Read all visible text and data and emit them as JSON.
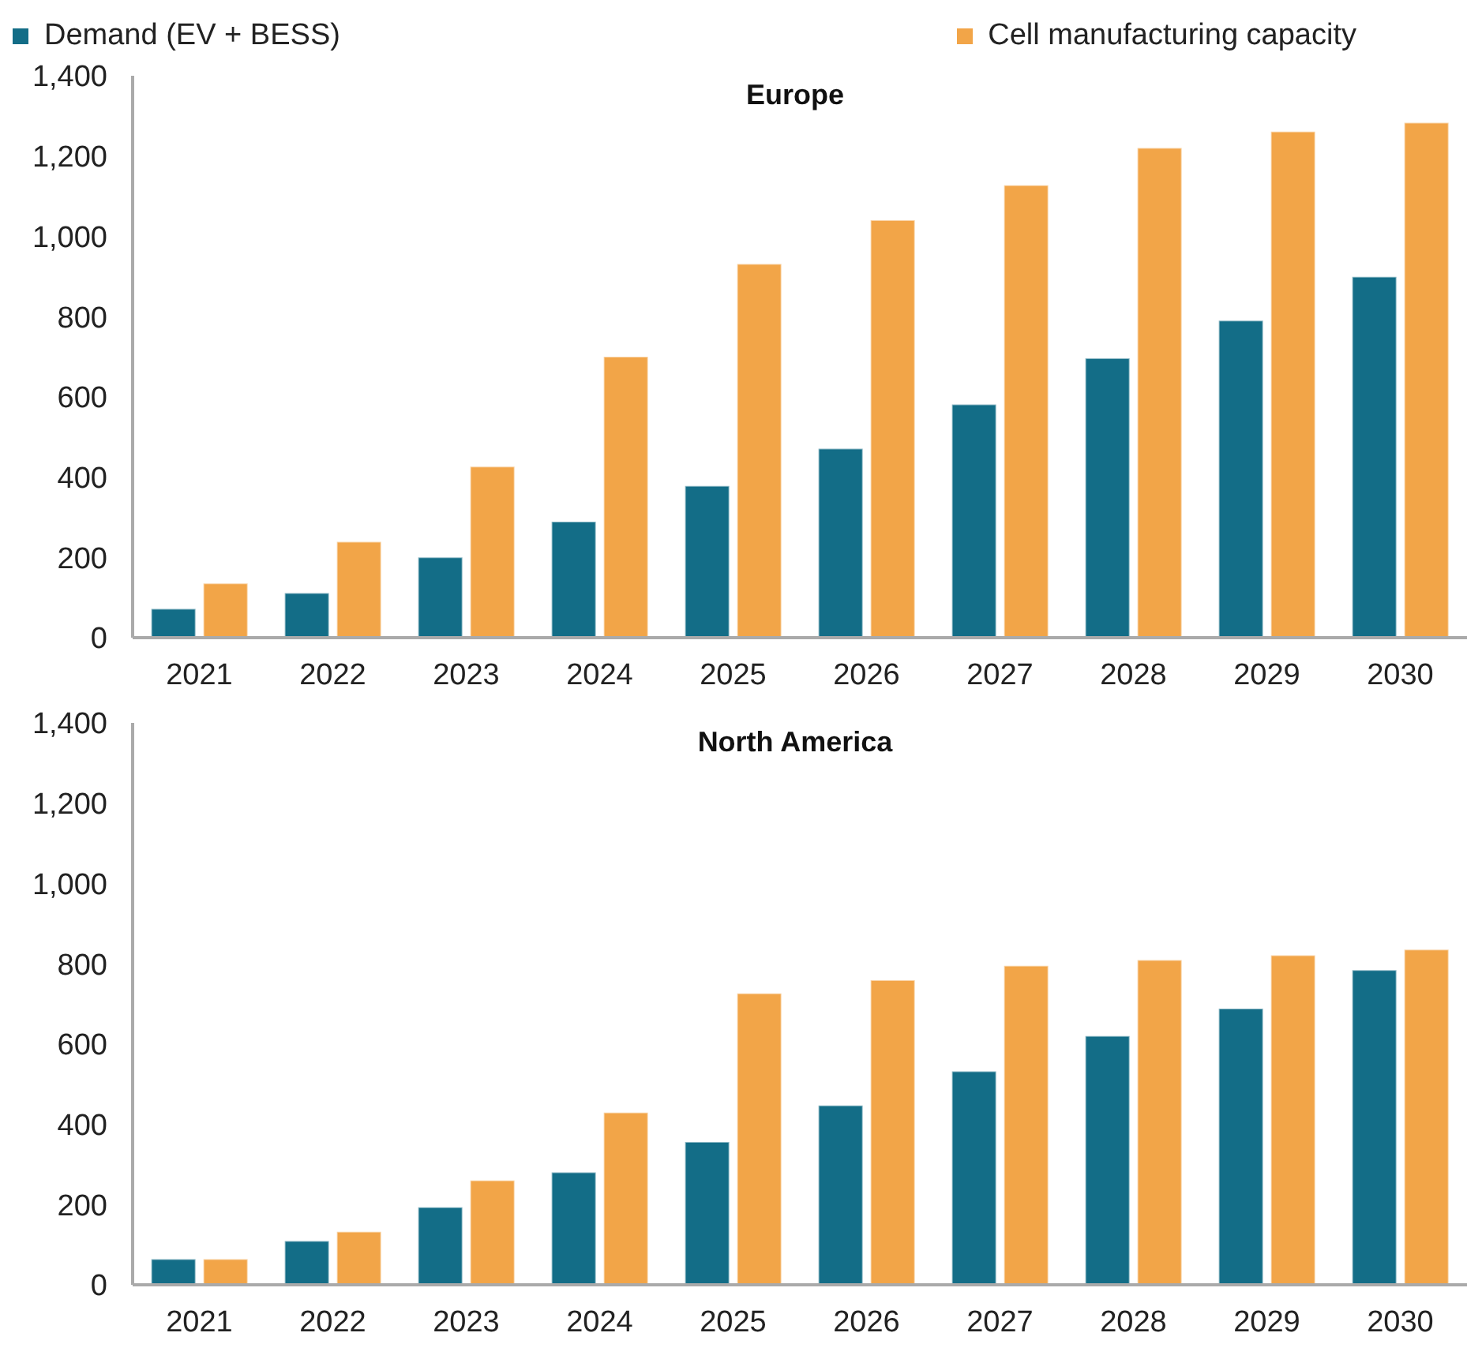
{
  "chart_data": [
    {
      "type": "bar",
      "title": "Europe",
      "categories": [
        "2021",
        "2022",
        "2023",
        "2024",
        "2025",
        "2026",
        "2027",
        "2028",
        "2029",
        "2030"
      ],
      "series": [
        {
          "name": "Demand (EV + BESS)",
          "color": "#136d87",
          "values": [
            72,
            111,
            200,
            289,
            378,
            471,
            581,
            696,
            790,
            899
          ]
        },
        {
          "name": "Cell manufacturing capacity",
          "color": "#f2a548",
          "values": [
            135,
            239,
            426,
            700,
            931,
            1040,
            1127,
            1220,
            1261,
            1283
          ]
        }
      ],
      "ylim": [
        0,
        1400
      ],
      "yticks": [
        0,
        200,
        400,
        600,
        800,
        {
          "value": 1000,
          "label": "1,000"
        },
        {
          "value": 1200,
          "label": "1,200"
        },
        {
          "value": 1400,
          "label": "1,400"
        }
      ],
      "grid": false,
      "legend": "top"
    },
    {
      "type": "bar",
      "title": "North America",
      "categories": [
        "2021",
        "2022",
        "2023",
        "2024",
        "2025",
        "2026",
        "2027",
        "2028",
        "2029",
        "2030"
      ],
      "series": [
        {
          "color": "#136d87",
          "values": [
            64,
            109,
            193,
            280,
            356,
            447,
            532,
            620,
            688,
            784
          ]
        },
        {
          "color": "#f2a548",
          "values": [
            64,
            132,
            260,
            429,
            726,
            759,
            795,
            809,
            821,
            835
          ]
        }
      ],
      "ylim": [
        0,
        1400
      ],
      "yticks": [
        0,
        200,
        400,
        600,
        800,
        {
          "value": 1000,
          "label": "1,000"
        },
        {
          "value": 1200,
          "label": "1,200"
        },
        {
          "value": 1400,
          "label": "1,400"
        }
      ],
      "grid": false,
      "legend": false
    }
  ]
}
